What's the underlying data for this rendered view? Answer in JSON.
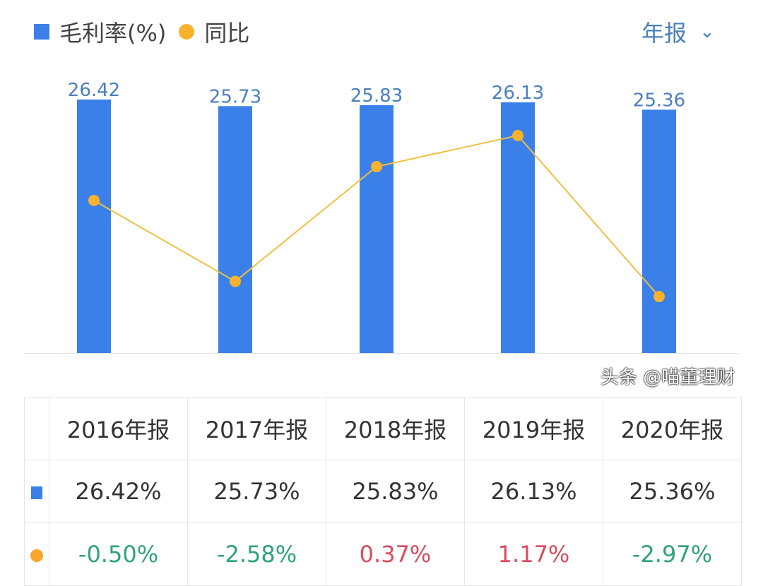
{
  "legend": {
    "bar_label": "毛利率(%)",
    "line_label": "同比"
  },
  "period_select": {
    "value": "年报"
  },
  "chart_data": {
    "type": "bar+line",
    "categories": [
      "2016年报",
      "2017年报",
      "2018年报",
      "2019年报",
      "2020年报"
    ],
    "series": [
      {
        "name": "毛利率(%)",
        "type": "bar",
        "color": "#3a80e8",
        "values": [
          26.42,
          25.73,
          25.83,
          26.13,
          25.36
        ],
        "labels": [
          "26.42",
          "25.73",
          "25.83",
          "26.13",
          "25.36"
        ]
      },
      {
        "name": "同比",
        "type": "line",
        "color": "#f8b22c",
        "values": [
          -0.5,
          -2.58,
          0.37,
          1.17,
          -2.97
        ]
      }
    ],
    "grid": false,
    "legend": "top-left"
  },
  "table": {
    "headers": [
      "2016年报",
      "2017年报",
      "2018年报",
      "2019年报",
      "2020年报"
    ],
    "rows": [
      {
        "marker": "bar",
        "cells": [
          "26.42%",
          "25.73%",
          "25.83%",
          "26.13%",
          "25.36%"
        ]
      },
      {
        "marker": "dot",
        "cells": [
          "-0.50%",
          "-2.58%",
          "0.37%",
          "1.17%",
          "-2.97%"
        ],
        "trend": [
          "down",
          "down",
          "up",
          "up",
          "down"
        ]
      }
    ]
  },
  "watermark": "头条 @喵董理财"
}
